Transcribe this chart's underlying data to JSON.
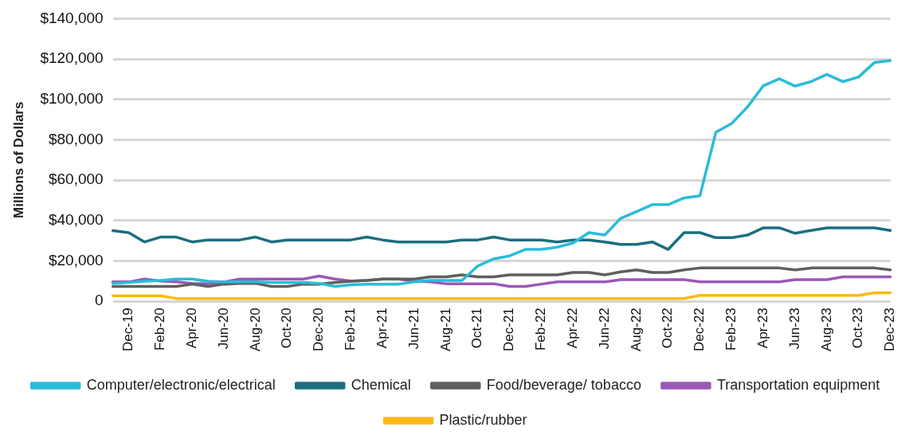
{
  "chart_data": {
    "type": "line",
    "ylabel": "Millions of Dollars",
    "categories": [
      null,
      "Dec-19",
      null,
      "Feb-20",
      null,
      "Apr-20",
      null,
      "Jun-20",
      null,
      "Aug-20",
      null,
      "Oct-20",
      null,
      "Dec-20",
      null,
      "Feb-21",
      null,
      "Apr-21",
      null,
      "Jun-21",
      null,
      "Aug-21",
      null,
      "Oct-21",
      null,
      "Dec-21",
      null,
      "Feb-22",
      null,
      "Apr-22",
      null,
      "Jun-22",
      null,
      "Aug-22",
      null,
      "Oct-22",
      null,
      "Dec-22",
      null,
      "Feb-23",
      null,
      "Apr-23",
      null,
      "Jun-23",
      null,
      "Aug-23",
      null,
      "Oct-23",
      null,
      "Dec-23"
    ],
    "series": [
      {
        "name": "Computer/electronic/electrical",
        "color": "#2bbcd8",
        "values": [
          8900,
          9300,
          9900,
          10300,
          11000,
          11000,
          9900,
          9600,
          9600,
          9600,
          9300,
          9300,
          9300,
          8900,
          7400,
          8200,
          8500,
          8500,
          8500,
          9600,
          10300,
          10300,
          10300,
          17500,
          21000,
          22500,
          25700,
          25700,
          26800,
          28900,
          34000,
          32800,
          41100,
          44400,
          47900,
          47900,
          51200,
          52300,
          83700,
          88100,
          96300,
          106800,
          110200,
          106600,
          108800,
          112400,
          108800,
          111100,
          118300,
          119200
        ]
      },
      {
        "name": "Chemical",
        "color": "#1b6f7f",
        "values": [
          35000,
          34000,
          29400,
          31800,
          31800,
          29400,
          30400,
          30400,
          30400,
          31800,
          29400,
          30400,
          30400,
          30400,
          30400,
          30400,
          31800,
          30400,
          29400,
          29400,
          29400,
          29400,
          30400,
          30400,
          31800,
          30400,
          30400,
          30400,
          29400,
          30400,
          30400,
          29400,
          28200,
          28200,
          29400,
          25700,
          34000,
          34000,
          31500,
          31500,
          32800,
          36400,
          36400,
          33700,
          35100,
          36400,
          36400,
          36400,
          36400,
          35100
        ]
      },
      {
        "name": "Food/beverage/ tobacco",
        "color": "#5f5f5f",
        "values": [
          7400,
          7400,
          7400,
          7400,
          7400,
          8500,
          7400,
          8500,
          8900,
          8900,
          7400,
          7400,
          8500,
          8500,
          9300,
          9900,
          10300,
          11000,
          11000,
          11000,
          12100,
          12100,
          13100,
          12100,
          12100,
          13100,
          13100,
          13100,
          13100,
          14300,
          14300,
          13100,
          14600,
          15600,
          14300,
          14300,
          15600,
          16500,
          16500,
          16500,
          16500,
          16500,
          16500,
          15600,
          16500,
          16500,
          16500,
          16500,
          16500,
          15600
        ]
      },
      {
        "name": "Transportation equipment",
        "color": "#9b59b6",
        "values": [
          9600,
          9600,
          11000,
          10000,
          9600,
          8900,
          8700,
          9600,
          11000,
          11000,
          11000,
          11000,
          11000,
          12500,
          11000,
          10000,
          10300,
          11000,
          11000,
          9900,
          9600,
          8700,
          8700,
          8700,
          8700,
          7400,
          7400,
          8500,
          9600,
          9600,
          9600,
          9600,
          10700,
          10700,
          10700,
          10700,
          10700,
          9600,
          9600,
          9600,
          9600,
          9600,
          9600,
          10700,
          10700,
          10700,
          12100,
          12100,
          12100,
          12100
        ]
      },
      {
        "name": "Plastic/rubber",
        "color": "#fdb913",
        "values": [
          2700,
          2700,
          2700,
          2700,
          1400,
          1400,
          1400,
          1400,
          1400,
          1400,
          1400,
          1400,
          1400,
          1400,
          1400,
          1400,
          1400,
          1400,
          1400,
          1400,
          1400,
          1400,
          1400,
          1400,
          1400,
          1400,
          1400,
          1400,
          1400,
          1400,
          1400,
          1400,
          1400,
          1400,
          1400,
          1400,
          1400,
          2900,
          2900,
          2900,
          2900,
          2900,
          2900,
          2900,
          2900,
          2900,
          2900,
          2900,
          4200,
          4200
        ]
      }
    ],
    "ylim": [
      0,
      140000
    ],
    "yticks": [
      0,
      {
        "value": 20000,
        "label": "$20,000"
      },
      {
        "value": 40000,
        "label": "$40,000"
      },
      {
        "value": 60000,
        "label": "$60,000"
      },
      {
        "value": 80000,
        "label": "$80,000"
      },
      {
        "value": 100000,
        "label": "$100,000"
      },
      {
        "value": 120000,
        "label": "$120,000"
      },
      {
        "value": 140000,
        "label": "$140,000"
      }
    ],
    "grid": "y",
    "legend": "bottom",
    "marker": "none",
    "line_style": "solid"
  }
}
